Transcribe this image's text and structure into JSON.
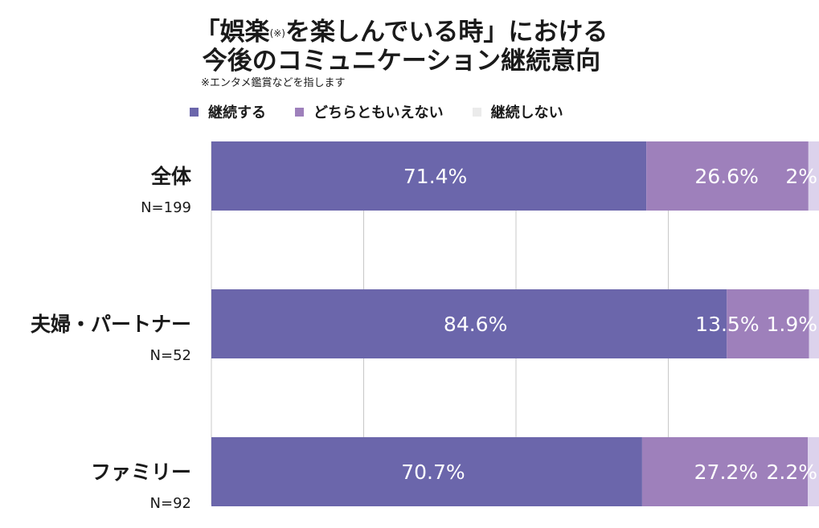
{
  "title": {
    "line1_a": "「娯楽",
    "line1_note": "(※)",
    "line1_b": "を楽しんでいる時」における",
    "line2": "今後のコミュニケーション継続意向"
  },
  "note": "※エンタメ鑑賞などを指します",
  "colors": {
    "continue": "#6b66ab",
    "neutral": "#9e80bb",
    "stop": "#dcd2ec",
    "grid": "#c8c8c8"
  },
  "chart_data": {
    "type": "bar",
    "orientation": "horizontal",
    "stacked": true,
    "categories": [
      {
        "label": "全体",
        "n": "N=199"
      },
      {
        "label": "夫婦・パートナー",
        "n": "N=52"
      },
      {
        "label": "ファミリー",
        "n": "N=92"
      }
    ],
    "series": [
      {
        "name": "継続する",
        "values": [
          71.4,
          84.6,
          70.7
        ],
        "labels": [
          "71.4%",
          "84.6%",
          "70.7%"
        ]
      },
      {
        "name": "どちらともいえない",
        "values": [
          26.6,
          13.5,
          27.2
        ],
        "labels": [
          "26.6%",
          "13.5%",
          "27.2%"
        ]
      },
      {
        "name": "継続しない",
        "values": [
          2,
          1.9,
          2.2
        ],
        "labels": [
          "2%",
          "1.9%",
          "2.2%"
        ]
      }
    ],
    "xlim": [
      0,
      100
    ],
    "grid": true,
    "legend_position": "top"
  }
}
